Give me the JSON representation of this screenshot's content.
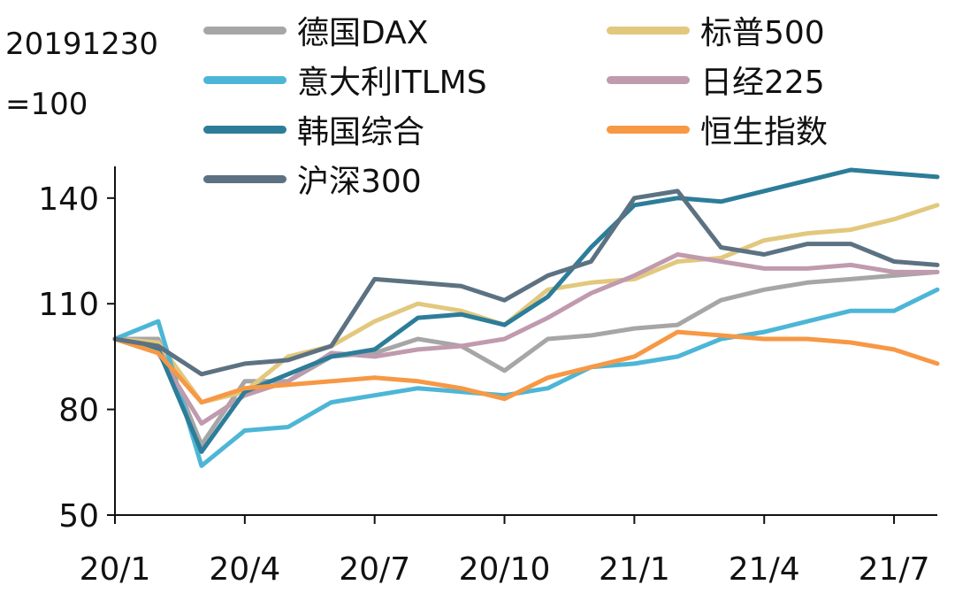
{
  "chart_data": {
    "type": "line",
    "note_lines": [
      "20191230",
      "=100"
    ],
    "x_ticks": [
      "20/1",
      "20/4",
      "20/7",
      "20/10",
      "21/1",
      "21/4",
      "21/7"
    ],
    "y_ticks": [
      50,
      80,
      110,
      140
    ],
    "ylim": [
      50,
      149
    ],
    "x_range": [
      "2020-01",
      "2021-08"
    ],
    "x_months": [
      "2020-01",
      "2020-02",
      "2020-03",
      "2020-04",
      "2020-05",
      "2020-06",
      "2020-07",
      "2020-08",
      "2020-09",
      "2020-10",
      "2020-11",
      "2020-12",
      "2021-01",
      "2021-02",
      "2021-03",
      "2021-04",
      "2021-05",
      "2021-06",
      "2021-07",
      "2021-08"
    ],
    "legend_placement": "top",
    "grid": false,
    "series": [
      {
        "name": "德国DAX",
        "color": "#a6a6a6",
        "values": [
          100,
          100,
          70,
          88,
          88,
          95,
          96,
          100,
          98,
          91,
          100,
          101,
          103,
          104,
          111,
          114,
          116,
          117,
          118,
          119
        ]
      },
      {
        "name": "标普500",
        "color": "#e2c87e",
        "values": [
          100,
          99,
          82,
          85,
          95,
          98,
          105,
          110,
          108,
          104,
          114,
          116,
          117,
          122,
          123,
          128,
          130,
          131,
          134,
          138
        ]
      },
      {
        "name": "意大利ITLMS",
        "color": "#4db6d6",
        "values": [
          100,
          105,
          64,
          74,
          75,
          82,
          84,
          86,
          85,
          84,
          86,
          92,
          93,
          95,
          100,
          102,
          105,
          108,
          108,
          114
        ]
      },
      {
        "name": "日经225",
        "color": "#c09aae",
        "values": [
          100,
          96,
          76,
          84,
          88,
          96,
          95,
          97,
          98,
          100,
          106,
          113,
          118,
          124,
          122,
          120,
          120,
          121,
          119,
          119
        ]
      },
      {
        "name": "韩国综合",
        "color": "#2c7d99",
        "values": [
          100,
          97,
          68,
          85,
          90,
          95,
          97,
          106,
          107,
          104,
          112,
          126,
          138,
          140,
          139,
          142,
          145,
          148,
          147,
          146
        ]
      },
      {
        "name": "恒生指数",
        "color": "#f79845",
        "values": [
          100,
          96,
          82,
          86,
          87,
          88,
          89,
          88,
          86,
          83,
          89,
          92,
          95,
          102,
          101,
          100,
          100,
          99,
          97,
          93
        ]
      },
      {
        "name": "沪深300",
        "color": "#5c7282",
        "values": [
          100,
          98,
          90,
          93,
          94,
          98,
          117,
          116,
          115,
          111,
          118,
          122,
          140,
          142,
          126,
          124,
          127,
          127,
          122,
          121
        ]
      }
    ]
  }
}
